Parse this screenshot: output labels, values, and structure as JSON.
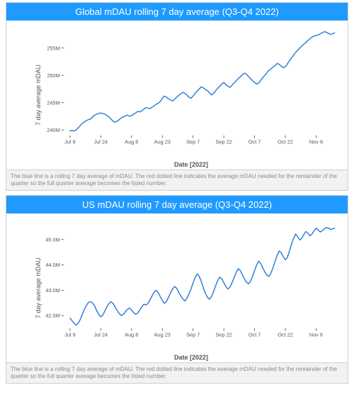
{
  "charts": [
    {
      "title": "Global mDAU rolling 7 day average (Q3-Q4 2022)",
      "y_label": "7 day average mDAU",
      "x_label": "Date [2022]",
      "caption": "The blue line is a rolling 7 day average of mDAU. The red dotted line indicates the average mDAU needed for the remainder of the quarter so the full quarter average becomes the listed number.",
      "type": "line",
      "line_color": "#2e7dd7",
      "line_width": 1.6,
      "background_color": "#ffffff",
      "title_bg": "#1f9aff",
      "title_color": "#ffffff",
      "axis_color": "#333333",
      "tick_font_size": 8,
      "y_ticks": [
        240,
        245,
        250,
        255
      ],
      "y_tick_labels": [
        "240M",
        "245M",
        "250M",
        "255M"
      ],
      "ylim": [
        239,
        258.5
      ],
      "x_ticks": [
        0,
        15,
        30,
        45,
        60,
        75,
        90,
        105,
        120
      ],
      "x_tick_labels": [
        "Jul 9",
        "Jul 24",
        "Aug 8",
        "Aug 23",
        "Sep 7",
        "Sep 22",
        "Oct 7",
        "Oct 22",
        "Nov 6"
      ],
      "xlim": [
        -3,
        130
      ],
      "values": [
        239.8,
        239.9,
        239.8,
        240.0,
        240.4,
        240.8,
        241.2,
        241.5,
        241.7,
        241.9,
        242.0,
        242.4,
        242.7,
        242.9,
        243.0,
        243.1,
        243.0,
        242.9,
        242.6,
        242.4,
        242.0,
        241.6,
        241.4,
        241.6,
        241.9,
        242.2,
        242.4,
        242.6,
        242.7,
        242.5,
        242.6,
        242.9,
        243.1,
        243.4,
        243.3,
        243.5,
        243.8,
        244.1,
        244.0,
        243.9,
        244.2,
        244.4,
        244.7,
        244.9,
        245.2,
        245.8,
        246.2,
        246.0,
        245.7,
        245.5,
        245.3,
        245.6,
        246.0,
        246.3,
        246.6,
        246.9,
        246.7,
        246.4,
        246.0,
        245.8,
        246.2,
        246.7,
        247.1,
        247.5,
        247.9,
        247.7,
        247.4,
        247.2,
        246.8,
        246.4,
        246.7,
        247.2,
        247.6,
        248.0,
        248.4,
        248.7,
        248.3,
        248.0,
        247.8,
        248.2,
        248.6,
        249.0,
        249.4,
        249.7,
        250.1,
        250.4,
        250.2,
        249.8,
        249.4,
        249.0,
        248.7,
        248.4,
        248.6,
        249.1,
        249.6,
        250.0,
        250.5,
        250.9,
        251.2,
        251.5,
        251.8,
        252.2,
        252.0,
        251.7,
        251.4,
        251.6,
        252.1,
        252.7,
        253.2,
        253.7,
        254.2,
        254.6,
        255.0,
        255.4,
        255.7,
        256.0,
        256.4,
        256.7,
        257.0,
        257.2,
        257.3,
        257.4,
        257.6,
        257.8,
        258.0,
        257.9,
        257.7,
        257.5,
        257.6,
        257.8
      ]
    },
    {
      "title": "US mDAU rolling 7 day average (Q3-Q4 2022)",
      "y_label": "7 day average mDAU",
      "x_label": "Date [2022]",
      "caption": "The blue line is a rolling 7 day average of mDAU. The red dotted line indicates the average mDAU needed for the remainder of the quarter so the full quarter average becomes the listed number.",
      "type": "line",
      "line_color": "#2e7dd7",
      "line_width": 1.6,
      "background_color": "#ffffff",
      "title_bg": "#1f9aff",
      "title_color": "#ffffff",
      "axis_color": "#333333",
      "tick_font_size": 8,
      "y_ticks": [
        42,
        43,
        44,
        45
      ],
      "y_tick_labels": [
        "42.0M",
        "43.0M",
        "44.0M",
        "45.0M"
      ],
      "ylim": [
        41.5,
        45.7
      ],
      "x_ticks": [
        0,
        15,
        30,
        45,
        60,
        75,
        90,
        105,
        120
      ],
      "x_tick_labels": [
        "Jul 9",
        "Jul 24",
        "Aug 8",
        "Aug 23",
        "Sep 7",
        "Sep 22",
        "Oct 7",
        "Oct 22",
        "Nov 6"
      ],
      "xlim": [
        -3,
        130
      ],
      "values": [
        41.9,
        41.8,
        41.7,
        41.62,
        41.7,
        41.85,
        42.05,
        42.25,
        42.4,
        42.52,
        42.55,
        42.5,
        42.38,
        42.2,
        42.05,
        41.95,
        42.02,
        42.18,
        42.35,
        42.48,
        42.55,
        42.48,
        42.35,
        42.2,
        42.08,
        42.0,
        42.05,
        42.15,
        42.25,
        42.3,
        42.22,
        42.12,
        42.05,
        42.1,
        42.22,
        42.35,
        42.45,
        42.42,
        42.48,
        42.62,
        42.78,
        42.92,
        43.0,
        42.9,
        42.75,
        42.6,
        42.48,
        42.55,
        42.72,
        42.9,
        43.05,
        43.15,
        43.08,
        42.92,
        42.78,
        42.65,
        42.58,
        42.68,
        42.85,
        43.05,
        43.28,
        43.5,
        43.65,
        43.55,
        43.35,
        43.1,
        42.88,
        42.72,
        42.65,
        42.75,
        42.95,
        43.18,
        43.38,
        43.52,
        43.45,
        43.3,
        43.15,
        43.05,
        43.12,
        43.3,
        43.5,
        43.7,
        43.85,
        43.78,
        43.62,
        43.45,
        43.32,
        43.25,
        43.35,
        43.55,
        43.78,
        44.0,
        44.15,
        44.05,
        43.88,
        43.72,
        43.6,
        43.55,
        43.68,
        43.9,
        44.15,
        44.38,
        44.55,
        44.48,
        44.32,
        44.2,
        44.3,
        44.55,
        44.82,
        45.05,
        45.22,
        45.12,
        44.98,
        45.05,
        45.2,
        45.32,
        45.25,
        45.15,
        45.22,
        45.35,
        45.45,
        45.38,
        45.3,
        45.35,
        45.42,
        45.48,
        45.45,
        45.4,
        45.42,
        45.45
      ]
    }
  ]
}
